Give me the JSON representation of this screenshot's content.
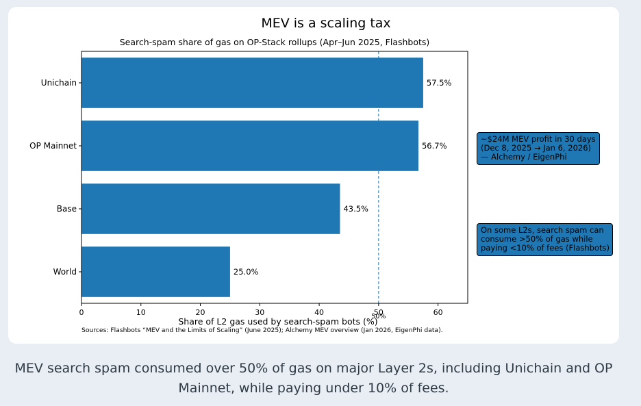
{
  "chart_data": {
    "type": "bar",
    "orientation": "horizontal",
    "title": "MEV is a scaling tax",
    "subtitle": "Search-spam share of gas on OP-Stack rollups (Apr–Jun 2025, Flashbots)",
    "xlabel": "Share of L2 gas used by search-spam bots (%)",
    "ylabel": "",
    "categories": [
      "Unichain",
      "OP Mainnet",
      "Base",
      "World"
    ],
    "values": [
      57.5,
      56.7,
      43.5,
      25.0
    ],
    "value_labels": [
      "57.5%",
      "56.7%",
      "43.5%",
      "25.0%"
    ],
    "xlim": [
      0,
      65
    ],
    "xticks": [
      0,
      10,
      20,
      30,
      40,
      50,
      60
    ],
    "reference_line": {
      "x": 50,
      "label": "50%",
      "style": "dashed"
    },
    "bar_color": "#1f77b4",
    "sources": "Sources: Flashbots “MEV and the Limits of Scaling” (June 2025); Alchemy MEV overview (Jan 2026, EigenPhi data).",
    "annotations": [
      {
        "lines": [
          "~$24M MEV profit in 30 days",
          "(Dec 8, 2025 → Jan 6, 2026)",
          "— Alchemy / EigenPhi"
        ]
      },
      {
        "lines": [
          "On some L2s, search spam can",
          "consume >50% of gas while",
          "paying <10% of fees (Flashbots)"
        ]
      }
    ]
  },
  "caption": "MEV search spam consumed over 50% of gas on major Layer 2s, including Unichain and OP Mainnet, while paying under 10% of fees.",
  "colors": {
    "accent": "#1f77b4",
    "background": "#e8eef4",
    "card": "#ffffff"
  }
}
